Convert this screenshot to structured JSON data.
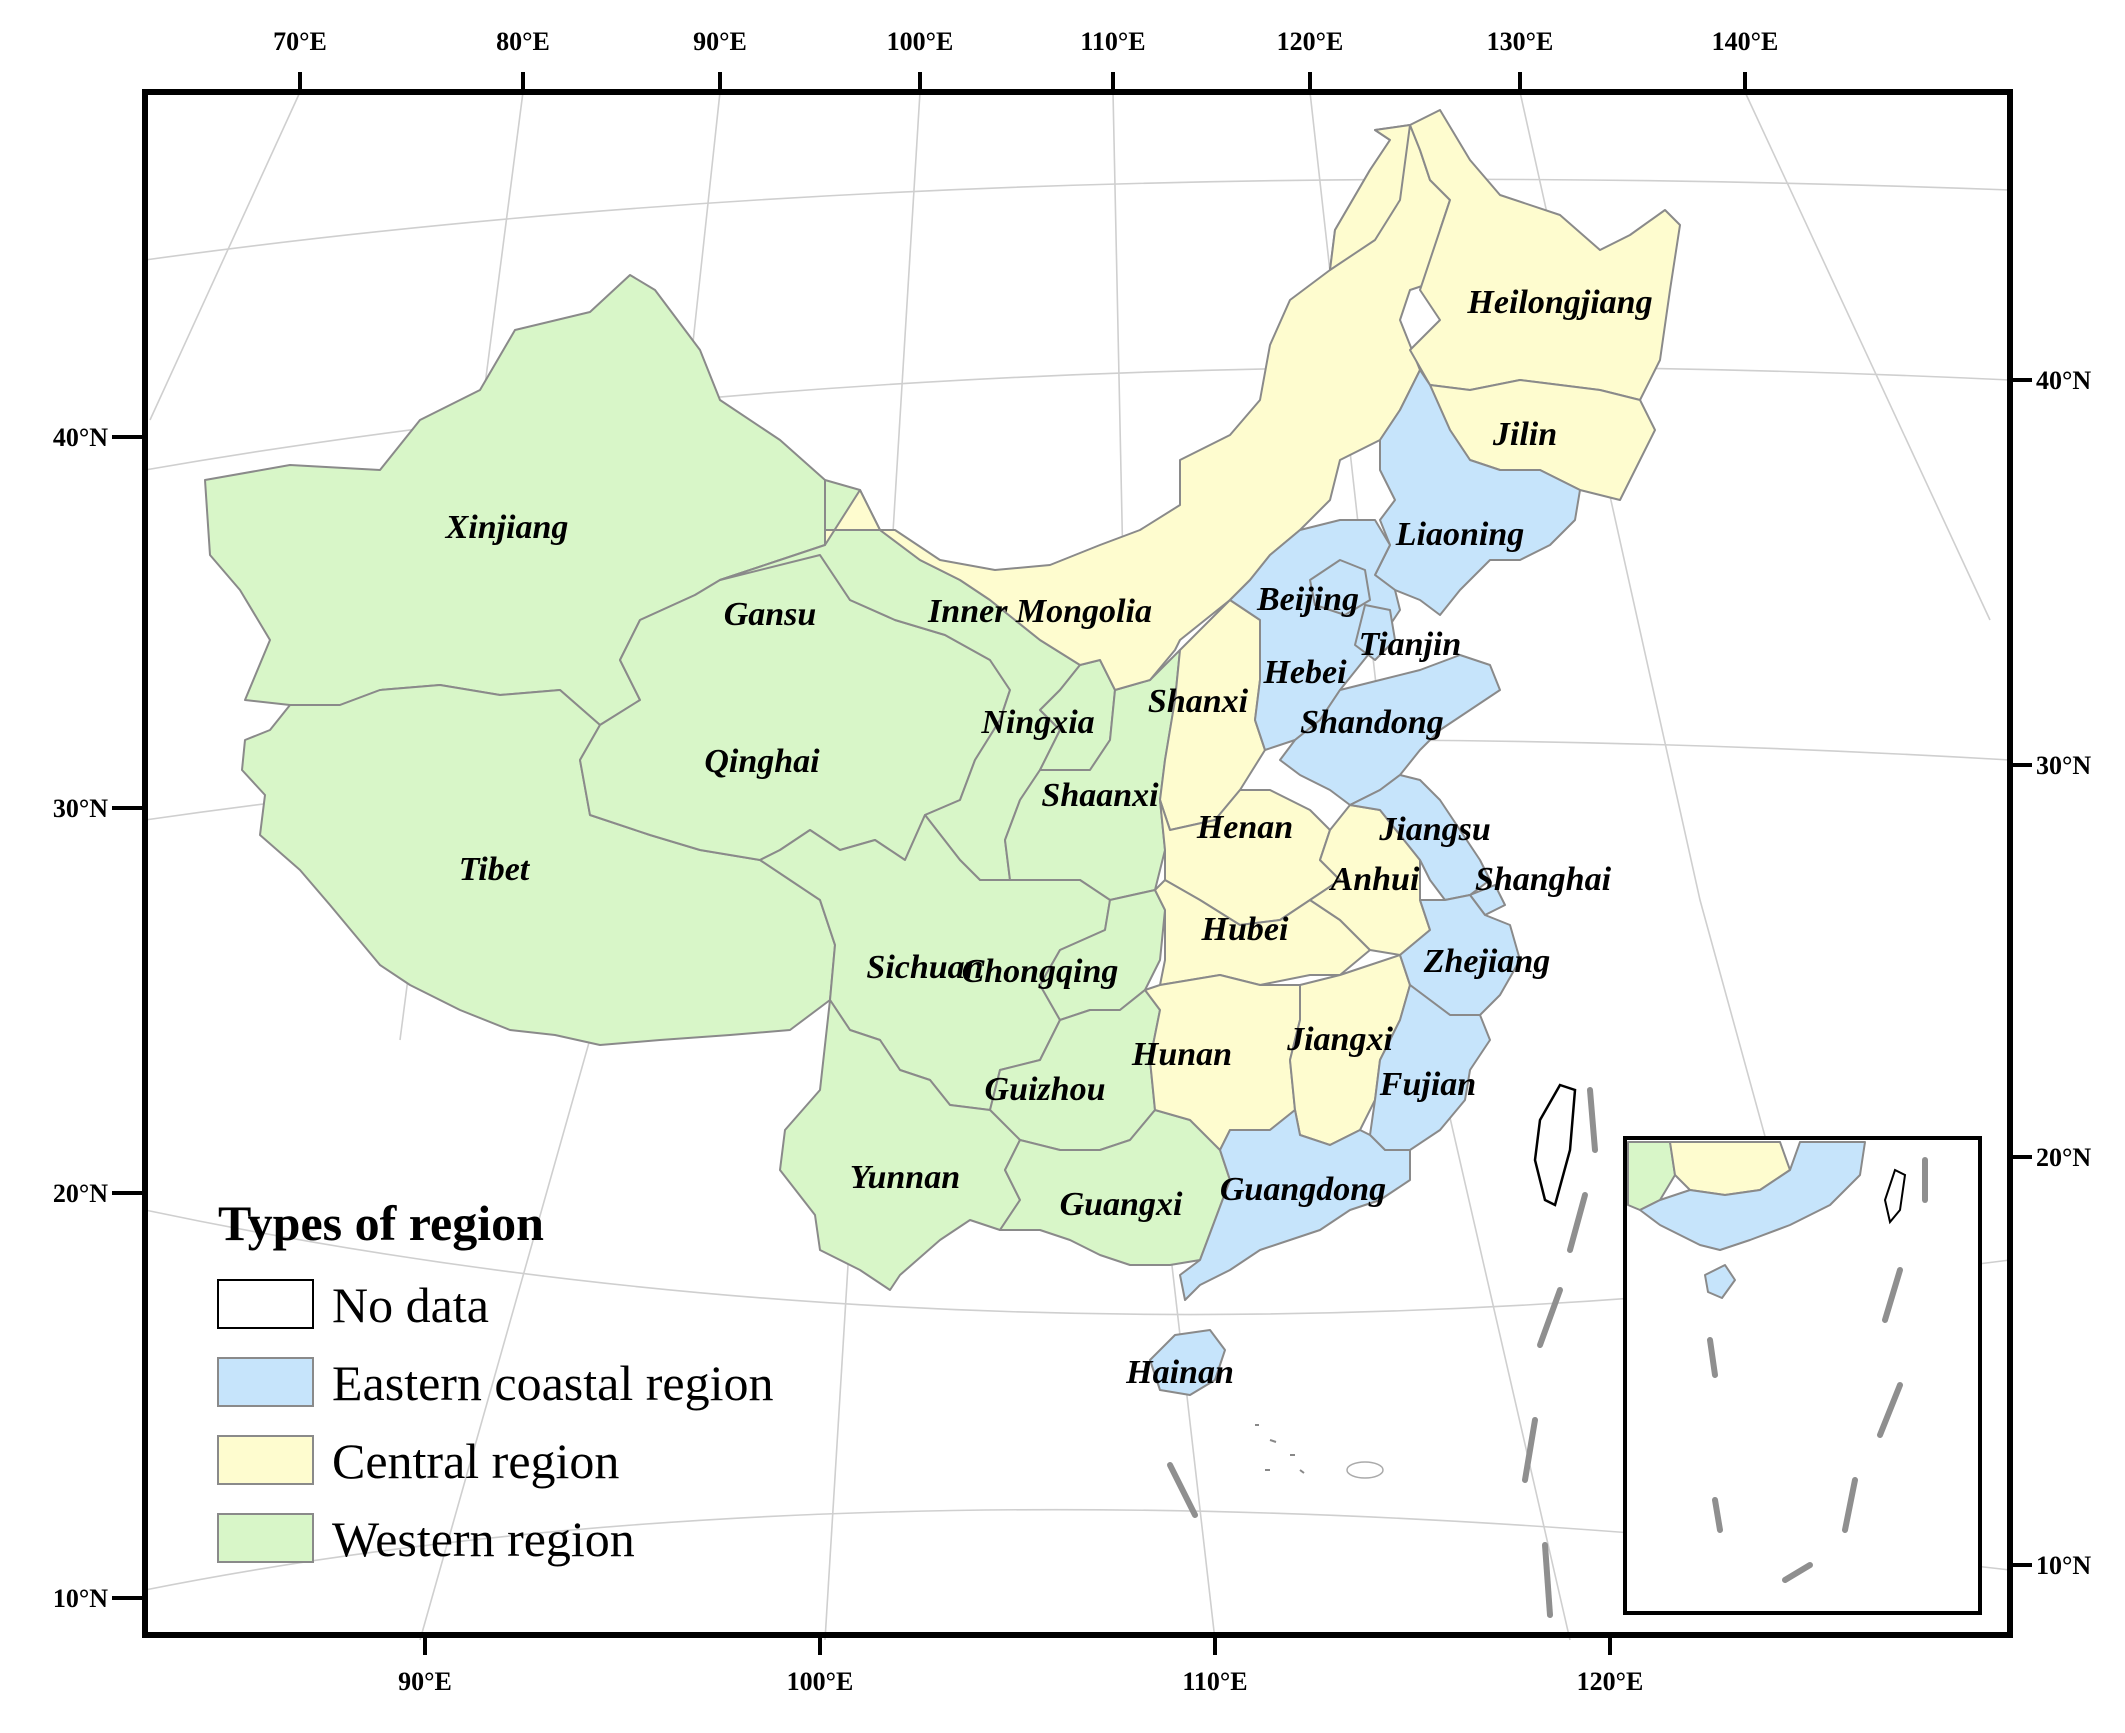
{
  "colors": {
    "eastern": "#c6e4fb",
    "central": "#fefccf",
    "western": "#d8f6c8",
    "no_data": "#ffffff",
    "border": "#8a8a8a",
    "frame": "#000000",
    "dash": "#8f8f8f"
  },
  "top_axis_labels": [
    "70°E",
    "80°E",
    "90°E",
    "100°E",
    "110°E",
    "120°E",
    "130°E",
    "140°E"
  ],
  "bottom_axis_labels": [
    "90°E",
    "100°E",
    "110°E",
    "120°E"
  ],
  "left_axis_labels": [
    "40°N",
    "30°N",
    "20°N",
    "10°N"
  ],
  "right_axis_labels": [
    "40°N",
    "30°N",
    "20°N",
    "10°N"
  ],
  "legend": {
    "title": "Types of region",
    "items": [
      {
        "label": "No data",
        "region": "no_data"
      },
      {
        "label": "Eastern coastal region",
        "region": "eastern"
      },
      {
        "label": "Central region",
        "region": "central"
      },
      {
        "label": "Western region",
        "region": "western"
      }
    ]
  },
  "provinces": [
    {
      "name": "Heilongjiang",
      "region": "central"
    },
    {
      "name": "Jilin",
      "region": "central"
    },
    {
      "name": "Liaoning",
      "region": "eastern"
    },
    {
      "name": "Xinjiang",
      "region": "western"
    },
    {
      "name": "Gansu",
      "region": "western"
    },
    {
      "name": "Inner Mongolia",
      "region": "central"
    },
    {
      "name": "Beijing",
      "region": "eastern"
    },
    {
      "name": "Tianjin",
      "region": "eastern"
    },
    {
      "name": "Hebei",
      "region": "eastern"
    },
    {
      "name": "Shanxi",
      "region": "central"
    },
    {
      "name": "Shandong",
      "region": "eastern"
    },
    {
      "name": "Ningxia",
      "region": "western"
    },
    {
      "name": "Qinghai",
      "region": "western"
    },
    {
      "name": "Shaanxi",
      "region": "western"
    },
    {
      "name": "Tibet",
      "region": "western"
    },
    {
      "name": "Henan",
      "region": "central"
    },
    {
      "name": "Jiangsu",
      "region": "eastern"
    },
    {
      "name": "Anhui",
      "region": "central"
    },
    {
      "name": "Shanghai",
      "region": "eastern"
    },
    {
      "name": "Hubei",
      "region": "central"
    },
    {
      "name": "Sichuan",
      "region": "western"
    },
    {
      "name": "Chongqing",
      "region": "western"
    },
    {
      "name": "Zhejiang",
      "region": "eastern"
    },
    {
      "name": "Hunan",
      "region": "central"
    },
    {
      "name": "Jiangxi",
      "region": "central"
    },
    {
      "name": "Guizhou",
      "region": "western"
    },
    {
      "name": "Fujian",
      "region": "eastern"
    },
    {
      "name": "Yunnan",
      "region": "western"
    },
    {
      "name": "Guangxi",
      "region": "western"
    },
    {
      "name": "Guangdong",
      "region": "eastern"
    },
    {
      "name": "Hainan",
      "region": "eastern"
    }
  ]
}
